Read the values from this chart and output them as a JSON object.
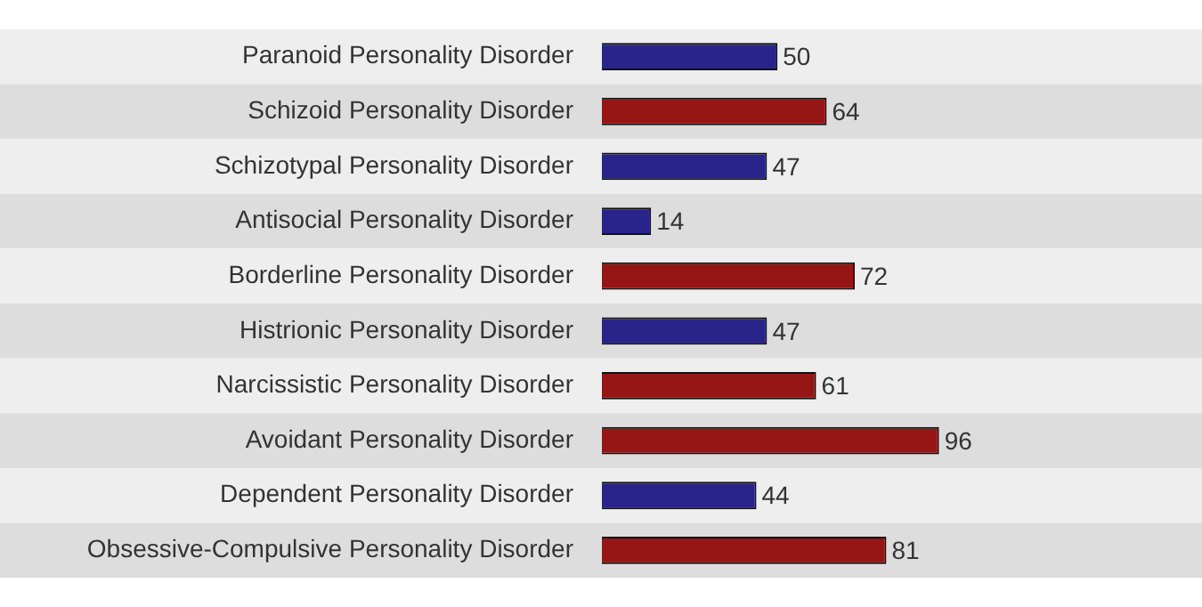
{
  "chart_data": {
    "type": "bar",
    "orientation": "horizontal",
    "categories": [
      "Paranoid Personality Disorder",
      "Schizoid Personality Disorder",
      "Schizotypal Personality Disorder",
      "Antisocial Personality Disorder",
      "Borderline Personality Disorder",
      "Histrionic Personality Disorder",
      "Narcissistic Personality Disorder",
      "Avoidant Personality Disorder",
      "Dependent Personality Disorder",
      "Obsessive-Compulsive Personality Disorder"
    ],
    "values": [
      50,
      64,
      47,
      14,
      72,
      47,
      61,
      96,
      44,
      81
    ],
    "colors": [
      "#28248a",
      "#961515",
      "#28248a",
      "#28248a",
      "#961515",
      "#28248a",
      "#961515",
      "#961515",
      "#28248a",
      "#961515"
    ],
    "data_labels": true
  }
}
